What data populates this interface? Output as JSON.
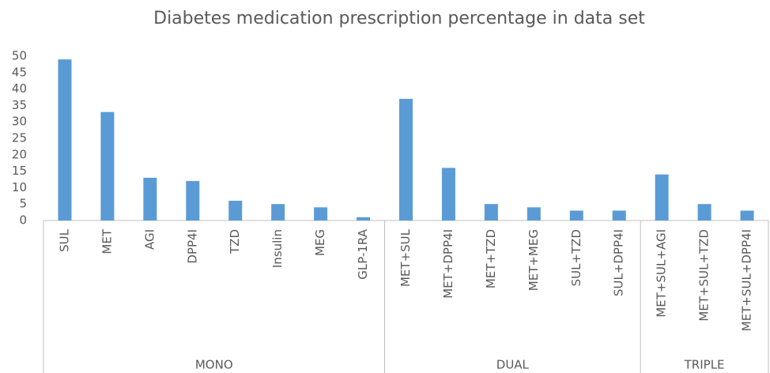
{
  "chart_data": {
    "type": "bar",
    "title": "Diabetes medication prescription percentage in  data set",
    "groups": [
      {
        "name": "MONO",
        "categories": [
          "SUL",
          "MET",
          "AGI",
          "DPP4I",
          "TZD",
          "Insulin",
          "MEG",
          "GLP-1RA"
        ]
      },
      {
        "name": "DUAL",
        "categories": [
          "MET+SUL",
          "MET+DPP4I",
          "MET+TZD",
          "MET+MEG",
          "SUL+TZD",
          "SUL+DPP4I"
        ]
      },
      {
        "name": "TRIPLE",
        "categories": [
          "MET+SUL+AGI",
          "MET+SUL+TZD",
          "MET+SUL+DPP4I"
        ]
      }
    ],
    "values": [
      49,
      33,
      13,
      12,
      6,
      5,
      4,
      1,
      37,
      16,
      5,
      4,
      3,
      3,
      14,
      5,
      3
    ],
    "color": "#5b9bd5",
    "ylim": [
      0,
      50
    ],
    "yticks": [
      0,
      5,
      10,
      15,
      20,
      25,
      30,
      35,
      40,
      45,
      50
    ],
    "grid": false
  }
}
